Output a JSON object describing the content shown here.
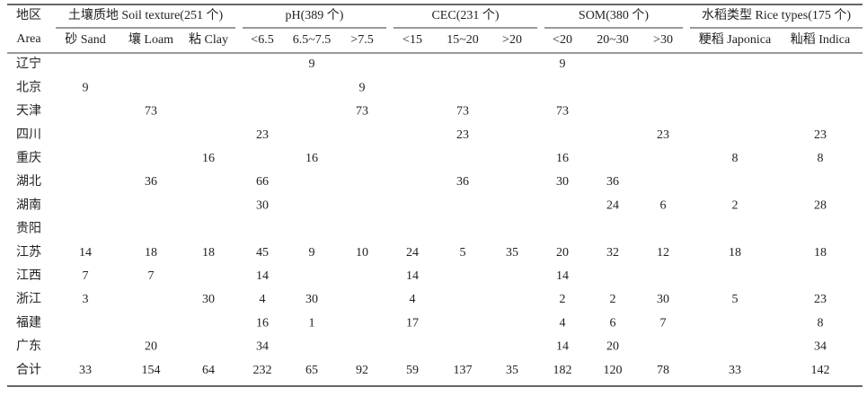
{
  "table": {
    "area_header": [
      "地区",
      "Area"
    ],
    "groups": [
      {
        "label": "土壤质地 Soil texture(251 个)",
        "columns": [
          "砂 Sand",
          "壤 Loam",
          "粘 Clay"
        ]
      },
      {
        "label": "pH(389 个)",
        "columns": [
          "<6.5",
          "6.5~7.5",
          ">7.5"
        ]
      },
      {
        "label": "CEC(231 个)",
        "columns": [
          "<15",
          "15~20",
          ">20"
        ]
      },
      {
        "label": "SOM(380 个)",
        "columns": [
          "<20",
          "20~30",
          ">30"
        ]
      },
      {
        "label": "水稻类型 Rice types(175 个)",
        "columns": [
          "粳稻 Japonica",
          "籼稻 Indica"
        ]
      }
    ],
    "rows": [
      {
        "area": "辽宁",
        "values": [
          null,
          null,
          null,
          null,
          9,
          null,
          null,
          null,
          null,
          9,
          null,
          null,
          null,
          null
        ]
      },
      {
        "area": "北京",
        "values": [
          9,
          null,
          null,
          null,
          null,
          9,
          null,
          null,
          null,
          null,
          null,
          null,
          null,
          null
        ]
      },
      {
        "area": "天津",
        "values": [
          null,
          73,
          null,
          null,
          null,
          73,
          null,
          73,
          null,
          73,
          null,
          null,
          null,
          null
        ]
      },
      {
        "area": "四川",
        "values": [
          null,
          null,
          null,
          23,
          null,
          null,
          null,
          23,
          null,
          null,
          null,
          23,
          null,
          23
        ]
      },
      {
        "area": "重庆",
        "values": [
          null,
          null,
          16,
          null,
          16,
          null,
          null,
          null,
          null,
          16,
          null,
          null,
          8,
          8
        ]
      },
      {
        "area": "湖北",
        "values": [
          null,
          36,
          null,
          66,
          null,
          null,
          null,
          36,
          null,
          30,
          36,
          null,
          null,
          null
        ]
      },
      {
        "area": "湖南",
        "values": [
          null,
          null,
          null,
          30,
          null,
          null,
          null,
          null,
          null,
          null,
          24,
          6,
          2,
          28
        ]
      },
      {
        "area": "贵阳",
        "values": [
          null,
          null,
          null,
          null,
          null,
          null,
          null,
          null,
          null,
          null,
          null,
          null,
          null,
          null
        ]
      },
      {
        "area": "江苏",
        "values": [
          14,
          18,
          18,
          45,
          9,
          10,
          24,
          5,
          35,
          20,
          32,
          12,
          18,
          18
        ]
      },
      {
        "area": "江西",
        "values": [
          7,
          7,
          null,
          14,
          null,
          null,
          14,
          null,
          null,
          14,
          null,
          null,
          null,
          null
        ]
      },
      {
        "area": "浙江",
        "values": [
          3,
          null,
          30,
          4,
          30,
          null,
          4,
          null,
          null,
          2,
          2,
          30,
          5,
          23
        ]
      },
      {
        "area": "福建",
        "values": [
          null,
          null,
          null,
          16,
          1,
          null,
          17,
          null,
          null,
          4,
          6,
          7,
          null,
          8
        ]
      },
      {
        "area": "广东",
        "values": [
          null,
          20,
          null,
          34,
          null,
          null,
          null,
          null,
          null,
          14,
          20,
          null,
          null,
          34
        ]
      },
      {
        "area": "合计",
        "values": [
          33,
          154,
          64,
          232,
          65,
          92,
          59,
          137,
          35,
          182,
          120,
          78,
          33,
          142
        ]
      }
    ]
  }
}
